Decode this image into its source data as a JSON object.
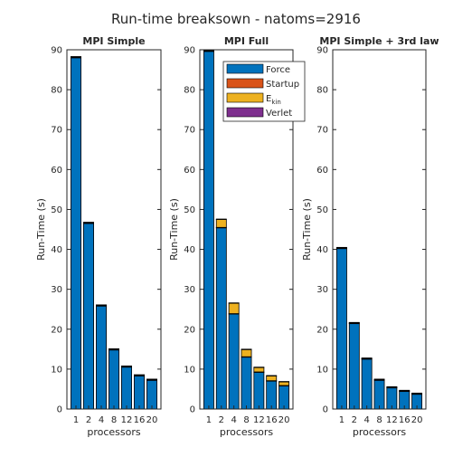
{
  "figure": {
    "title": "Run-time breaksown - natoms=2916"
  },
  "colors": {
    "Force": "#0072BD",
    "Startup": "#D95319",
    "Ekin": "#EDB120",
    "Verlet": "#7E2F8E",
    "axis": "#262626"
  },
  "legend": {
    "entries": [
      {
        "key": "Force",
        "label": "Force"
      },
      {
        "key": "Startup",
        "label": "Startup"
      },
      {
        "key": "Ekin",
        "label": "E",
        "sub": "kin"
      },
      {
        "key": "Verlet",
        "label": "Verlet"
      }
    ]
  },
  "chart_data": [
    {
      "type": "bar",
      "title": "MPI Simple",
      "xlabel": "processors",
      "ylabel": "Run-Time (s)",
      "ylim": [
        0,
        90
      ],
      "yticks": [
        0,
        10,
        20,
        30,
        40,
        50,
        60,
        70,
        80,
        90
      ],
      "categories": [
        "1",
        "2",
        "4",
        "8",
        "12",
        "16",
        "20"
      ],
      "stacked": true,
      "series": [
        {
          "name": "Force",
          "values": [
            88.0,
            46.5,
            25.8,
            14.8,
            10.5,
            8.3,
            7.2
          ]
        },
        {
          "name": "Startup",
          "values": [
            0.1,
            0.1,
            0.1,
            0.1,
            0.1,
            0.1,
            0.1
          ]
        },
        {
          "name": "Ekin",
          "values": [
            0.1,
            0.1,
            0.1,
            0.1,
            0.1,
            0.1,
            0.1
          ]
        },
        {
          "name": "Verlet",
          "values": [
            0.1,
            0.1,
            0.1,
            0.1,
            0.1,
            0.1,
            0.1
          ]
        }
      ]
    },
    {
      "type": "bar",
      "title": "MPI Full",
      "xlabel": "processors",
      "ylabel": "Run-Time (s)",
      "ylim": [
        0,
        90
      ],
      "yticks": [
        0,
        10,
        20,
        30,
        40,
        50,
        60,
        70,
        80,
        90
      ],
      "categories": [
        "1",
        "2",
        "4",
        "8",
        "12",
        "16",
        "20"
      ],
      "stacked": true,
      "legend": "top-right",
      "series": [
        {
          "name": "Force",
          "values": [
            89.6,
            45.4,
            23.8,
            13.0,
            9.2,
            7.0,
            5.8
          ]
        },
        {
          "name": "Startup",
          "values": [
            0.1,
            0.1,
            0.1,
            0.1,
            0.1,
            0.1,
            0.1
          ]
        },
        {
          "name": "Ekin",
          "values": [
            0.2,
            2.0,
            2.6,
            1.8,
            1.1,
            1.2,
            0.9
          ]
        },
        {
          "name": "Verlet",
          "values": [
            0.1,
            0.1,
            0.1,
            0.1,
            0.1,
            0.1,
            0.1
          ]
        }
      ]
    },
    {
      "type": "bar",
      "title": "MPI Simple + 3rd law",
      "xlabel": "processors",
      "ylabel": "Run-Time (s)",
      "ylim": [
        0,
        90
      ],
      "yticks": [
        0,
        10,
        20,
        30,
        40,
        50,
        60,
        70,
        80,
        90
      ],
      "categories": [
        "1",
        "2",
        "4",
        "8",
        "12",
        "16",
        "20"
      ],
      "stacked": true,
      "series": [
        {
          "name": "Force",
          "values": [
            40.2,
            21.4,
            12.5,
            7.2,
            5.3,
            4.4,
            3.7
          ]
        },
        {
          "name": "Startup",
          "values": [
            0.1,
            0.1,
            0.1,
            0.1,
            0.1,
            0.1,
            0.1
          ]
        },
        {
          "name": "Ekin",
          "values": [
            0.1,
            0.1,
            0.1,
            0.1,
            0.1,
            0.1,
            0.1
          ]
        },
        {
          "name": "Verlet",
          "values": [
            0.1,
            0.1,
            0.1,
            0.1,
            0.1,
            0.1,
            0.1
          ]
        }
      ]
    }
  ]
}
